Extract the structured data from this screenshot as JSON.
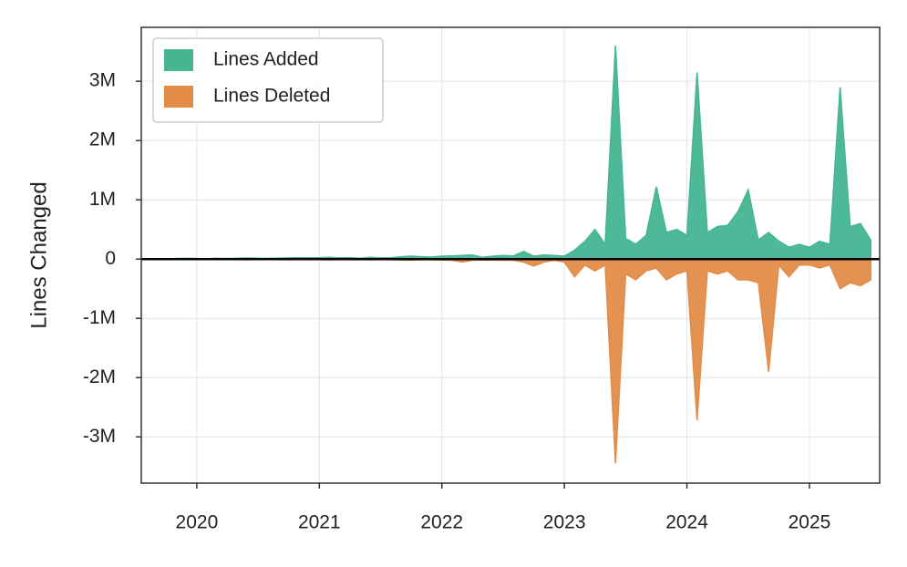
{
  "chart_data": {
    "type": "area",
    "ylabel": "Lines Changed",
    "x": [
      2019.833,
      2019.917,
      2020.0,
      2020.083,
      2020.167,
      2020.25,
      2020.333,
      2020.417,
      2020.5,
      2020.583,
      2020.667,
      2020.75,
      2020.833,
      2020.917,
      2021.0,
      2021.083,
      2021.167,
      2021.25,
      2021.333,
      2021.417,
      2021.5,
      2021.583,
      2021.667,
      2021.75,
      2021.833,
      2021.917,
      2022.0,
      2022.083,
      2022.167,
      2022.25,
      2022.333,
      2022.417,
      2022.5,
      2022.583,
      2022.667,
      2022.75,
      2022.833,
      2022.917,
      2023.0,
      2023.083,
      2023.167,
      2023.25,
      2023.333,
      2023.417,
      2023.5,
      2023.583,
      2023.667,
      2023.75,
      2023.833,
      2023.917,
      2024.0,
      2024.083,
      2024.167,
      2024.25,
      2024.333,
      2024.417,
      2024.5,
      2024.583,
      2024.667,
      2024.75,
      2024.833,
      2024.917,
      2025.0,
      2025.083,
      2025.167,
      2025.25,
      2025.333,
      2025.417,
      2025.5
    ],
    "series": [
      {
        "name": "Lines Added",
        "color": "#45b592",
        "values": [
          10000,
          12000,
          10000,
          8000,
          12000,
          10000,
          15000,
          20000,
          15000,
          12000,
          18000,
          20000,
          25000,
          20000,
          25000,
          30000,
          20000,
          25000,
          15000,
          30000,
          20000,
          25000,
          40000,
          50000,
          40000,
          35000,
          50000,
          55000,
          60000,
          70000,
          30000,
          50000,
          60000,
          55000,
          130000,
          50000,
          70000,
          60000,
          50000,
          150000,
          300000,
          500000,
          250000,
          3600000,
          350000,
          250000,
          400000,
          1220000,
          450000,
          500000,
          400000,
          3150000,
          450000,
          550000,
          570000,
          800000,
          1170000,
          320000,
          450000,
          300000,
          200000,
          250000,
          200000,
          300000,
          250000,
          2900000,
          550000,
          600000,
          320000
        ]
      },
      {
        "name": "Lines Deleted",
        "color": "#e38c48",
        "values": [
          -5000,
          -5000,
          -5000,
          -3000,
          -5000,
          -5000,
          -8000,
          -10000,
          -5000,
          -5000,
          -8000,
          -10000,
          -10000,
          -8000,
          -10000,
          -12000,
          -8000,
          -10000,
          -8000,
          -10000,
          -8000,
          -10000,
          -15000,
          -15000,
          -12000,
          -12000,
          -15000,
          -20000,
          -50000,
          -20000,
          -15000,
          -15000,
          -20000,
          -20000,
          -50000,
          -120000,
          -50000,
          -20000,
          -50000,
          -300000,
          -100000,
          -200000,
          -100000,
          -3450000,
          -250000,
          -350000,
          -200000,
          -150000,
          -350000,
          -250000,
          -200000,
          -2720000,
          -200000,
          -250000,
          -200000,
          -350000,
          -350000,
          -400000,
          -1900000,
          -100000,
          -300000,
          -100000,
          -100000,
          -150000,
          -100000,
          -500000,
          -400000,
          -450000,
          -350000
        ]
      }
    ],
    "xlim": [
      2019.547,
      2025.573
    ],
    "xticks": [
      2020,
      2021,
      2022,
      2023,
      2024,
      2025
    ],
    "ylim": [
      -3780000,
      3910000
    ],
    "yticks": [
      {
        "value": -3000000,
        "label": "-3M"
      },
      {
        "value": -2000000,
        "label": "-2M"
      },
      {
        "value": -1000000,
        "label": "-1M"
      },
      0,
      {
        "value": 1000000,
        "label": "1M"
      },
      {
        "value": 2000000,
        "label": "2M"
      },
      {
        "value": 3000000,
        "label": "3M"
      }
    ],
    "grid": true,
    "legend": "upper left"
  }
}
